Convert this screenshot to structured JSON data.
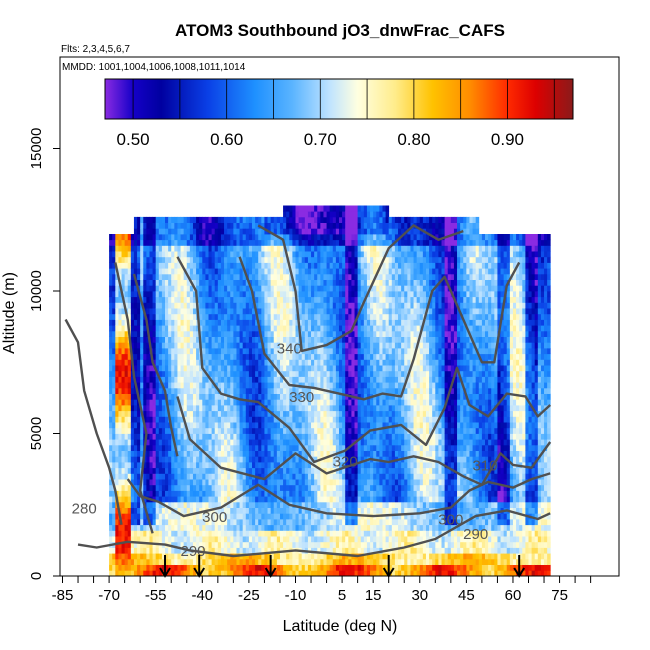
{
  "chart_data": {
    "type": "heatmap",
    "title": "ATOM3 Southbound jO3_dnwFrac_CAFS",
    "subtitle_flights": "Flts: 2,3,4,5,6,7",
    "subtitle_dates": "MMDD: 1001,1004,1006,1008,1011,1014",
    "xlabel": "Latitude (deg N)",
    "ylabel": "Altitude (m)",
    "xlim": [
      -85,
      85
    ],
    "ylim": [
      0,
      17500
    ],
    "x_ticks": [
      -85,
      -70,
      -55,
      -40,
      -25,
      -10,
      5,
      15,
      30,
      45,
      60,
      75
    ],
    "x_tick_labels": [
      "-85",
      "-70",
      "-55",
      "-40",
      "-25",
      "-10",
      "5",
      "15",
      "30",
      "45",
      "60",
      "75"
    ],
    "y_ticks": [
      0,
      5000,
      10000,
      15000
    ],
    "y_tick_labels": [
      "0",
      "5000",
      "10000",
      "15000"
    ],
    "colorbar": {
      "range": [
        0.47,
        0.97
      ],
      "ticks": [
        0.5,
        0.6,
        0.7,
        0.8,
        0.9
      ],
      "tick_labels": [
        "0.50",
        "0.60",
        "0.70",
        "0.80",
        "0.90"
      ],
      "stops": [
        {
          "v": 0.47,
          "c": "#8a2be2"
        },
        {
          "v": 0.5,
          "c": "#1500c8"
        },
        {
          "v": 0.53,
          "c": "#0000a0"
        },
        {
          "v": 0.58,
          "c": "#0a40e6"
        },
        {
          "v": 0.63,
          "c": "#1e90ff"
        },
        {
          "v": 0.67,
          "c": "#5ab4ff"
        },
        {
          "v": 0.71,
          "c": "#bfe3ff"
        },
        {
          "v": 0.74,
          "c": "#ffffe0"
        },
        {
          "v": 0.78,
          "c": "#ffec8b"
        },
        {
          "v": 0.82,
          "c": "#ffc200"
        },
        {
          "v": 0.86,
          "c": "#ff8c00"
        },
        {
          "v": 0.9,
          "c": "#ff2a00"
        },
        {
          "v": 0.93,
          "c": "#dd0000"
        },
        {
          "v": 0.97,
          "c": "#8b1a1a"
        }
      ]
    },
    "field_lat_range": [
      -70,
      72
    ],
    "field_alt_range": [
      0,
      12500
    ],
    "contours": [
      {
        "label": "280",
        "points": [
          [
            -84,
            9000
          ],
          [
            -80,
            8200
          ],
          [
            -78,
            6500
          ],
          [
            -74,
            5000
          ],
          [
            -70,
            3800
          ],
          [
            -68,
            3000
          ],
          [
            -66,
            1800
          ]
        ]
      },
      {
        "label": "290",
        "points": [
          [
            -80,
            1100
          ],
          [
            -74,
            1000
          ],
          [
            -64,
            1200
          ],
          [
            -52,
            1100
          ],
          [
            -44,
            900
          ],
          [
            -30,
            700
          ],
          [
            -10,
            900
          ],
          [
            10,
            700
          ],
          [
            25,
            1000
          ],
          [
            35,
            1300
          ],
          [
            48,
            2100
          ],
          [
            58,
            2300
          ],
          [
            68,
            2000
          ],
          [
            72,
            2200
          ]
        ]
      },
      {
        "label": "300",
        "points": [
          [
            -64,
            3400
          ],
          [
            -60,
            2800
          ],
          [
            -54,
            2600
          ],
          [
            -46,
            2100
          ],
          [
            -34,
            2400
          ],
          [
            -22,
            3200
          ],
          [
            -12,
            2500
          ],
          [
            0,
            2200
          ],
          [
            15,
            2100
          ],
          [
            30,
            2200
          ],
          [
            40,
            2400
          ],
          [
            46,
            3000
          ],
          [
            52,
            3300
          ],
          [
            60,
            3100
          ],
          [
            66,
            3400
          ],
          [
            72,
            3600
          ]
        ]
      },
      {
        "label": "310",
        "points": [
          [
            -48,
            6300
          ],
          [
            -44,
            4800
          ],
          [
            -34,
            3800
          ],
          [
            -20,
            3400
          ],
          [
            -10,
            4300
          ],
          [
            0,
            3600
          ],
          [
            14,
            4100
          ],
          [
            20,
            4000
          ],
          [
            28,
            4200
          ],
          [
            36,
            4000
          ],
          [
            44,
            3500
          ],
          [
            50,
            3200
          ],
          [
            56,
            4300
          ],
          [
            60,
            3900
          ],
          [
            66,
            3800
          ],
          [
            72,
            4700
          ]
        ]
      },
      {
        "label": "320",
        "points": [
          [
            -48,
            11200
          ],
          [
            -42,
            10000
          ],
          [
            -40,
            7300
          ],
          [
            -34,
            6400
          ],
          [
            -28,
            6200
          ],
          [
            -22,
            6100
          ],
          [
            -12,
            5200
          ],
          [
            -4,
            4000
          ],
          [
            6,
            4400
          ],
          [
            14,
            5100
          ],
          [
            24,
            5300
          ],
          [
            32,
            4600
          ],
          [
            38,
            5900
          ],
          [
            42,
            7300
          ],
          [
            46,
            6000
          ],
          [
            52,
            5600
          ],
          [
            58,
            6400
          ],
          [
            64,
            6300
          ],
          [
            68,
            5600
          ],
          [
            72,
            6000
          ]
        ]
      },
      {
        "label": "330",
        "points": [
          [
            -28,
            11200
          ],
          [
            -24,
            10000
          ],
          [
            -20,
            7800
          ],
          [
            -12,
            6700
          ],
          [
            -4,
            6600
          ],
          [
            4,
            6400
          ],
          [
            12,
            6200
          ],
          [
            18,
            6400
          ],
          [
            24,
            6300
          ],
          [
            28,
            7600
          ],
          [
            34,
            10000
          ],
          [
            38,
            10500
          ],
          [
            44,
            9000
          ],
          [
            50,
            7500
          ],
          [
            54,
            7500
          ],
          [
            58,
            10200
          ],
          [
            62,
            11000
          ]
        ]
      },
      {
        "label": "340",
        "points": [
          [
            -22,
            12300
          ],
          [
            -14,
            11800
          ],
          [
            -10,
            10000
          ],
          [
            -8,
            7900
          ],
          [
            0,
            8100
          ],
          [
            8,
            8600
          ],
          [
            12,
            9600
          ],
          [
            20,
            11500
          ],
          [
            28,
            12300
          ],
          [
            36,
            11800
          ],
          [
            44,
            12100
          ]
        ]
      },
      {
        "label": "",
        "points": [
          [
            -68,
            11000
          ],
          [
            -64,
            9000
          ],
          [
            -62,
            7000
          ],
          [
            -58,
            5000
          ],
          [
            -60,
            3000
          ],
          [
            -56,
            1500
          ]
        ]
      },
      {
        "label": "",
        "points": [
          [
            -62,
            10600
          ],
          [
            -58,
            9000
          ],
          [
            -56,
            7500
          ],
          [
            -52,
            6500
          ],
          [
            -50,
            5200
          ],
          [
            -48,
            4200
          ]
        ]
      }
    ],
    "contour_label_positions": [
      {
        "label": "280",
        "x": -78,
        "y": 2200
      },
      {
        "label": "290",
        "x": -43,
        "y": 700
      },
      {
        "label": "300",
        "x": -36,
        "y": 1900
      },
      {
        "label": "300",
        "x": 40,
        "y": 1800
      },
      {
        "label": "290",
        "x": 48,
        "y": 1300
      },
      {
        "label": "310",
        "x": 51,
        "y": 3700
      },
      {
        "label": "320",
        "x": 6,
        "y": 3850
      },
      {
        "label": "330",
        "x": -8,
        "y": 6100
      },
      {
        "label": "340",
        "x": -12,
        "y": 7800
      }
    ],
    "profile_markers_lat": [
      -52,
      -41,
      -18,
      20,
      62
    ],
    "colors": {
      "contour": "#505050",
      "arrow": "#000000",
      "axis": "#000000"
    }
  }
}
